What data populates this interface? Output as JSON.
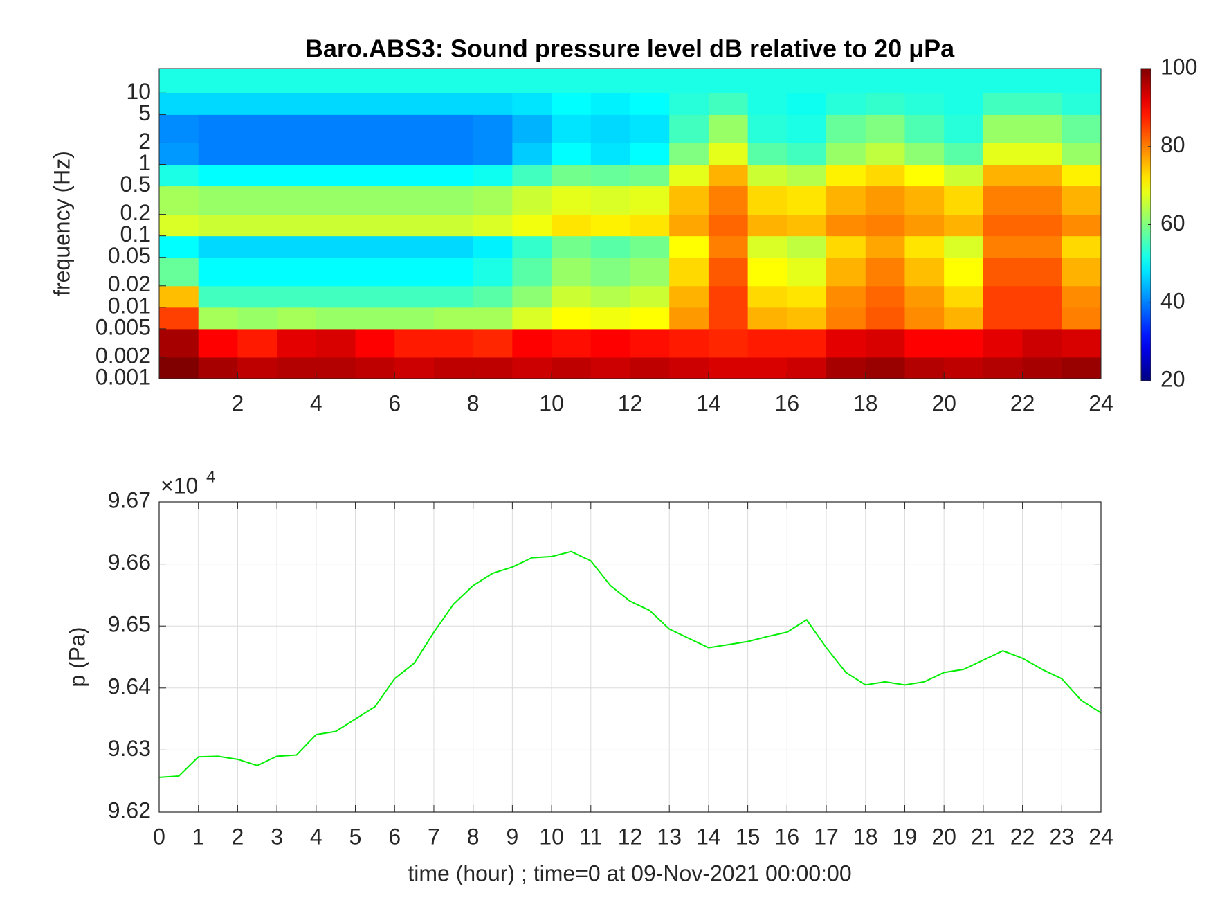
{
  "chart_data": [
    {
      "type": "heatmap",
      "title": "Baro.ABS3: Sound pressure level dB relative to 20 μPa",
      "ylabel": "frequency (Hz)",
      "log_y": true,
      "colormap": "jet",
      "x_edges": [
        0,
        1,
        2,
        3,
        4,
        5,
        6,
        7,
        8,
        9,
        10,
        11,
        12,
        13,
        14,
        15,
        16,
        17,
        18,
        19,
        20,
        21,
        22,
        23,
        24
      ],
      "y_edges": [
        0.001,
        0.002,
        0.005,
        0.01,
        0.02,
        0.05,
        0.1,
        0.2,
        0.5,
        1,
        2,
        5,
        10,
        22
      ],
      "z": [
        [
          100,
          97,
          95,
          96,
          96,
          95,
          94,
          95,
          95,
          94,
          95,
          94,
          95,
          94,
          93,
          93,
          94,
          97,
          98,
          96,
          95,
          96,
          97,
          98
        ],
        [
          97,
          90,
          88,
          92,
          93,
          90,
          88,
          88,
          87,
          90,
          89,
          90,
          89,
          88,
          87,
          88,
          88,
          92,
          93,
          90,
          90,
          92,
          94,
          93
        ],
        [
          85,
          63,
          62,
          63,
          62,
          62,
          62,
          63,
          63,
          67,
          70,
          69,
          70,
          78,
          85,
          76,
          75,
          80,
          83,
          79,
          76,
          85,
          85,
          80
        ],
        [
          75,
          55,
          55,
          55,
          55,
          55,
          55,
          55,
          57,
          61,
          66,
          64,
          66,
          76,
          85,
          73,
          72,
          79,
          82,
          78,
          73,
          85,
          85,
          79
        ],
        [
          58,
          50,
          50,
          50,
          50,
          50,
          50,
          50,
          52,
          57,
          62,
          60,
          62,
          73,
          83,
          70,
          68,
          76,
          80,
          75,
          70,
          83,
          83,
          76
        ],
        [
          50,
          47,
          47,
          47,
          47,
          47,
          47,
          47,
          49,
          54,
          59,
          57,
          59,
          70,
          80,
          67,
          65,
          73,
          77,
          72,
          67,
          80,
          80,
          73
        ],
        [
          67,
          66,
          66,
          66,
          66,
          66,
          66,
          66,
          67,
          69,
          72,
          71,
          72,
          77,
          82,
          76,
          75,
          79,
          80,
          78,
          76,
          82,
          82,
          79
        ],
        [
          63,
          62,
          62,
          62,
          62,
          62,
          62,
          62,
          63,
          66,
          68,
          67,
          68,
          75,
          80,
          73,
          72,
          76,
          78,
          76,
          73,
          80,
          80,
          76
        ],
        [
          52,
          50,
          50,
          50,
          50,
          50,
          50,
          50,
          51,
          55,
          59,
          58,
          59,
          68,
          76,
          66,
          64,
          71,
          73,
          70,
          66,
          76,
          76,
          71
        ],
        [
          42,
          40,
          40,
          40,
          40,
          40,
          40,
          40,
          41,
          46,
          50,
          48,
          50,
          60,
          68,
          57,
          55,
          62,
          65,
          61,
          57,
          68,
          68,
          62
        ],
        [
          41,
          40,
          40,
          40,
          40,
          40,
          40,
          40,
          41,
          44,
          48,
          47,
          48,
          55,
          62,
          53,
          52,
          58,
          60,
          56,
          53,
          62,
          62,
          58
        ],
        [
          47,
          47,
          47,
          47,
          47,
          47,
          47,
          47,
          47,
          48,
          50,
          49,
          50,
          53,
          55,
          52,
          51,
          53,
          54,
          53,
          52,
          55,
          55,
          53
        ],
        [
          52,
          52,
          52,
          52,
          52,
          52,
          52,
          52,
          52,
          52,
          52,
          52,
          52,
          52,
          52,
          52,
          52,
          52,
          52,
          52,
          52,
          52,
          52,
          52
        ]
      ],
      "xlim": [
        0,
        24
      ],
      "xticks": [
        2,
        4,
        6,
        8,
        10,
        12,
        14,
        16,
        18,
        20,
        22,
        24
      ],
      "ylim": [
        0.001,
        22
      ],
      "yticks": [
        0.001,
        0.002,
        0.005,
        0.01,
        0.02,
        0.05,
        0.1,
        0.2,
        0.5,
        1,
        2,
        5,
        10
      ],
      "clim": [
        20,
        100
      ],
      "cticks": [
        20,
        40,
        60,
        80,
        100
      ]
    },
    {
      "type": "line",
      "xlabel": "time (hour) ; time=0 at 09-Nov-2021 00:00:00",
      "ylabel": "p (Pa)",
      "y_multiplier": "×10",
      "y_multiplier_power": "4",
      "grid": true,
      "x": [
        0,
        0.5,
        1,
        1.5,
        2,
        2.5,
        3,
        3.5,
        4,
        4.5,
        5,
        5.5,
        6,
        6.5,
        7,
        7.5,
        8,
        8.5,
        9,
        9.5,
        10,
        10.5,
        11,
        11.5,
        12,
        12.5,
        13,
        13.5,
        14,
        14.5,
        15,
        15.5,
        16,
        16.5,
        17,
        17.5,
        18,
        18.5,
        19,
        19.5,
        20,
        20.5,
        21,
        21.5,
        22,
        22.5,
        23,
        23.5,
        24
      ],
      "series": [
        {
          "color": "#00ee00",
          "values": [
            9.6256,
            9.6258,
            9.6289,
            9.629,
            9.6285,
            9.6275,
            9.629,
            9.6292,
            9.6325,
            9.633,
            9.635,
            9.637,
            9.6415,
            9.644,
            9.649,
            9.6535,
            9.6565,
            9.6585,
            9.6595,
            9.661,
            9.6612,
            9.662,
            9.6605,
            9.6565,
            9.654,
            9.6525,
            9.6495,
            9.648,
            9.6465,
            9.647,
            9.6475,
            9.6483,
            9.649,
            9.651,
            9.6465,
            9.6425,
            9.6405,
            9.641,
            9.6405,
            9.641,
            9.6425,
            9.643,
            9.6445,
            9.646,
            9.6448,
            9.643,
            9.6415,
            9.638,
            9.636
          ]
        }
      ],
      "xlim": [
        0,
        24
      ],
      "xticks": [
        0,
        1,
        2,
        3,
        4,
        5,
        6,
        7,
        8,
        9,
        10,
        11,
        12,
        13,
        14,
        15,
        16,
        17,
        18,
        19,
        20,
        21,
        22,
        23,
        24
      ],
      "ylim": [
        9.62,
        9.67
      ],
      "yticks": [
        9.62,
        9.63,
        9.64,
        9.65,
        9.66,
        9.67
      ]
    }
  ]
}
